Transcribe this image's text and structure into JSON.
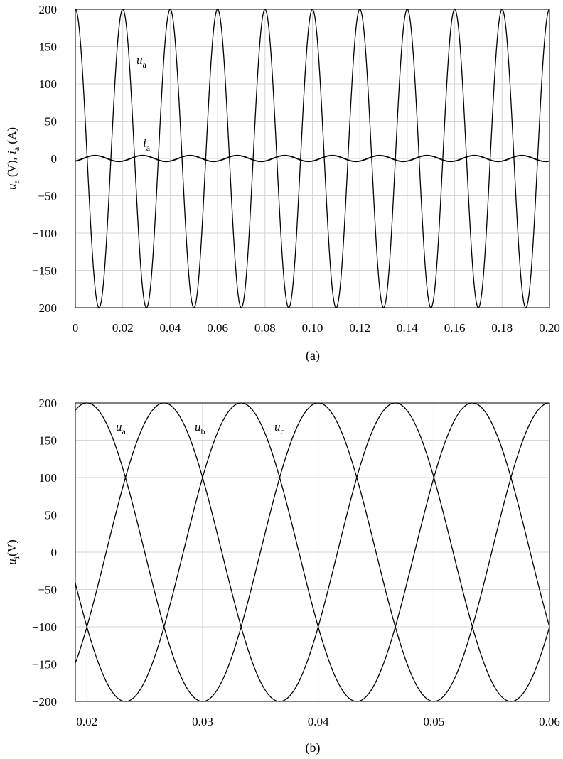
{
  "chart_data": [
    {
      "type": "line",
      "caption": "(a)",
      "ylabel": {
        "main": "u",
        "sub": "a",
        "mid": " (V), ",
        "main2": "i",
        "sub2": "a",
        "tail": " (A)"
      },
      "xlim": [
        0,
        0.2
      ],
      "ylim": [
        -200,
        200
      ],
      "xticks": [
        0,
        0.02,
        0.04,
        0.06,
        0.08,
        0.1,
        0.12,
        0.14,
        0.16,
        0.18,
        0.2
      ],
      "xtick_labels": [
        "0",
        "0.02",
        "0.04",
        "0.06",
        "0.08",
        "0.10",
        "0.12",
        "0.14",
        "0.16",
        "0.18",
        "0.20"
      ],
      "yticks": [
        200,
        150,
        100,
        50,
        0,
        -50,
        -100,
        -150,
        -200
      ],
      "ytick_labels": [
        "200",
        "150",
        "100",
        "50",
        "0",
        "−50",
        "−100",
        "−150",
        "−200"
      ],
      "grid": true,
      "series": [
        {
          "name": {
            "main": "u",
            "sub": "a"
          },
          "function": "cos",
          "amplitude": 200,
          "frequency_hz": 50,
          "phase_deg": 0
        },
        {
          "name": {
            "main": "i",
            "sub": "a"
          },
          "function": "cos",
          "amplitude": 4,
          "frequency_hz": 50,
          "phase_deg": -150
        }
      ]
    },
    {
      "type": "line",
      "caption": "(b)",
      "ylabel": {
        "main": "u",
        "sub": "i",
        "tail": "(V)"
      },
      "xlim": [
        0.019,
        0.06
      ],
      "ylim": [
        -200,
        200
      ],
      "xticks": [
        0.02,
        0.03,
        0.04,
        0.05,
        0.06
      ],
      "xtick_labels": [
        "0.02",
        "0.03",
        "0.04",
        "0.05",
        "0.06"
      ],
      "yticks": [
        200,
        150,
        100,
        50,
        0,
        -50,
        -100,
        -150,
        -200
      ],
      "ytick_labels": [
        "200",
        "150",
        "100",
        "50",
        "0",
        "−50",
        "−100",
        "−150",
        "−200"
      ],
      "grid": true,
      "series": [
        {
          "name": {
            "main": "u",
            "sub": "a"
          },
          "function": "cos",
          "amplitude": 200,
          "frequency_hz": 50,
          "phase_deg": 0
        },
        {
          "name": {
            "main": "u",
            "sub": "b"
          },
          "function": "cos",
          "amplitude": 200,
          "frequency_hz": 50,
          "phase_deg": -120
        },
        {
          "name": {
            "main": "u",
            "sub": "c"
          },
          "function": "cos",
          "amplitude": 200,
          "frequency_hz": 50,
          "phase_deg": 120
        }
      ]
    }
  ]
}
